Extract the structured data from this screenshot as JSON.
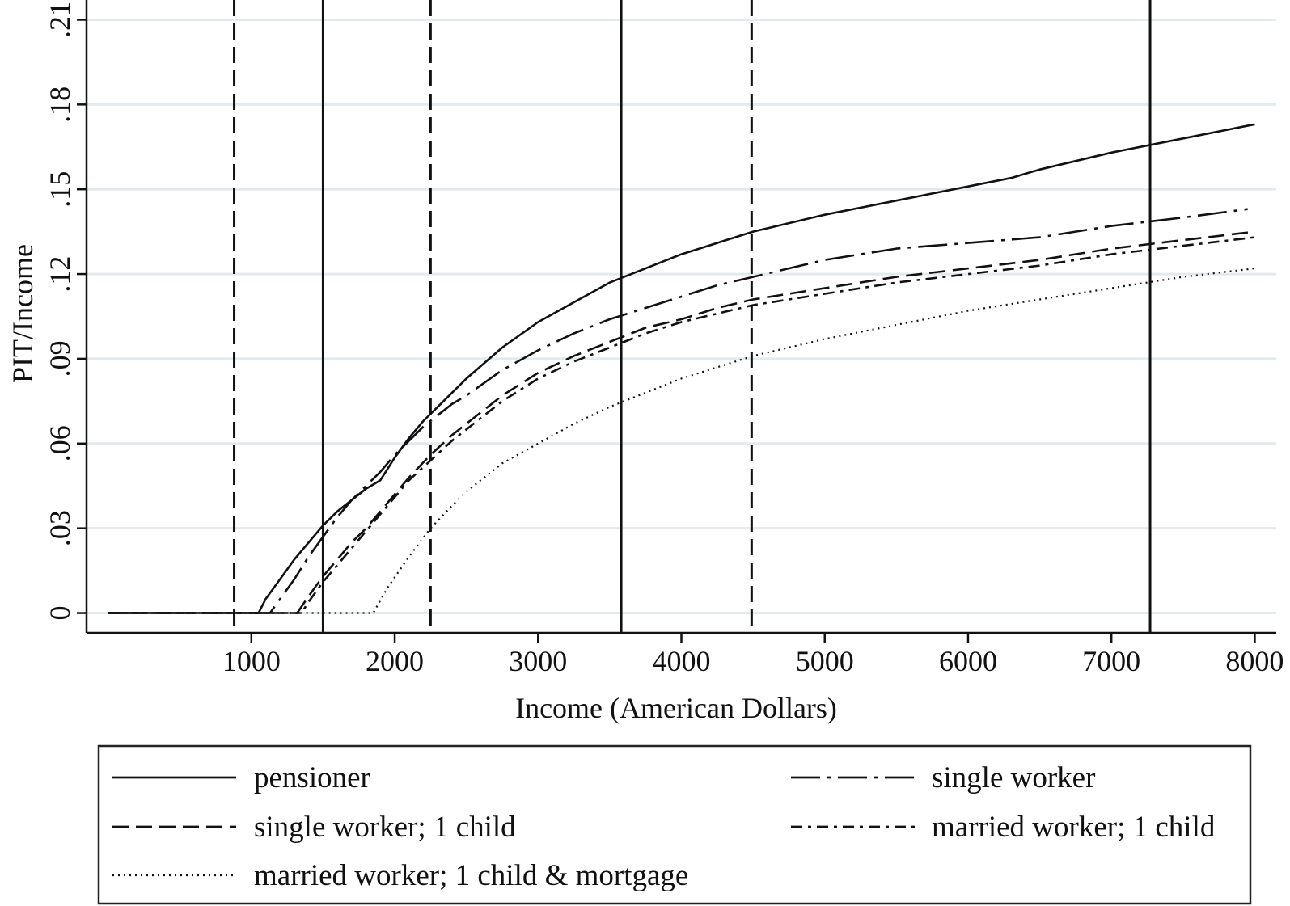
{
  "chart_data": {
    "type": "line",
    "xlabel": "Income (American Dollars)",
    "ylabel": "PIT/Income",
    "xlim": [
      -150,
      8150
    ],
    "ylim": [
      -0.007,
      0.217
    ],
    "xticks": [
      1000,
      2000,
      3000,
      4000,
      5000,
      6000,
      7000,
      8000
    ],
    "xtick_labels": [
      "1000",
      "2000",
      "3000",
      "4000",
      "5000",
      "6000",
      "7000",
      "8000"
    ],
    "yticks": [
      0,
      0.03,
      0.06,
      0.09,
      0.12,
      0.15,
      0.18,
      0.21
    ],
    "ytick_labels": [
      "0",
      ".03",
      ".06",
      ".09",
      ".12",
      ".15",
      ".18",
      ".21"
    ],
    "grid": true,
    "legend_position": "bottom",
    "series": [
      {
        "name": "pensioner",
        "style": "solid",
        "x": [
          0,
          1050,
          1100,
          1200,
          1300,
          1400,
          1500,
          1600,
          1700,
          1800,
          1900,
          2000,
          2100,
          2200,
          2300,
          2400,
          2500,
          2750,
          3000,
          3250,
          3500,
          3750,
          4000,
          4250,
          4500,
          5000,
          5500,
          6000,
          6300,
          6500,
          7000,
          7500,
          8000
        ],
        "y": [
          0,
          0,
          0.005,
          0.012,
          0.019,
          0.025,
          0.031,
          0.036,
          0.04,
          0.044,
          0.047,
          0.055,
          0.062,
          0.068,
          0.073,
          0.078,
          0.083,
          0.094,
          0.103,
          0.11,
          0.117,
          0.122,
          0.127,
          0.131,
          0.135,
          0.141,
          0.146,
          0.151,
          0.154,
          0.157,
          0.163,
          0.168,
          0.173
        ]
      },
      {
        "name": "single worker",
        "style": "longdash-dot",
        "x": [
          0,
          1130,
          1200,
          1300,
          1400,
          1500,
          1600,
          1700,
          1800,
          1900,
          2000,
          2100,
          2200,
          2300,
          2400,
          2500,
          2750,
          3000,
          3250,
          3500,
          3750,
          4000,
          4250,
          4500,
          5000,
          5500,
          6000,
          6500,
          7000,
          7500,
          7950
        ],
        "y": [
          0,
          0,
          0.005,
          0.012,
          0.02,
          0.027,
          0.034,
          0.04,
          0.045,
          0.05,
          0.056,
          0.061,
          0.066,
          0.07,
          0.074,
          0.077,
          0.086,
          0.093,
          0.099,
          0.104,
          0.108,
          0.112,
          0.116,
          0.119,
          0.125,
          0.129,
          0.131,
          0.133,
          0.137,
          0.14,
          0.143
        ]
      },
      {
        "name": "single worker; 1 child",
        "style": "dash",
        "x": [
          0,
          1320,
          1400,
          1500,
          1600,
          1700,
          1800,
          1900,
          2000,
          2100,
          2250,
          2400,
          2500,
          2750,
          3000,
          3250,
          3500,
          3750,
          4000,
          4250,
          4500,
          5000,
          5500,
          6000,
          6500,
          7000,
          7500,
          8000
        ],
        "y": [
          0,
          0,
          0.006,
          0.013,
          0.019,
          0.025,
          0.03,
          0.036,
          0.042,
          0.048,
          0.056,
          0.063,
          0.067,
          0.077,
          0.085,
          0.091,
          0.096,
          0.101,
          0.104,
          0.108,
          0.111,
          0.115,
          0.119,
          0.122,
          0.125,
          0.129,
          0.132,
          0.135
        ]
      },
      {
        "name": "married worker; 1 child",
        "style": "dash-dot",
        "x": [
          0,
          1350,
          1400,
          1500,
          1600,
          1700,
          1800,
          1900,
          2000,
          2100,
          2250,
          2400,
          2500,
          2750,
          3000,
          3250,
          3500,
          3750,
          4000,
          4250,
          4500,
          5000,
          5500,
          6000,
          6500,
          7000,
          7500,
          8000
        ],
        "y": [
          0,
          0,
          0.004,
          0.011,
          0.017,
          0.023,
          0.029,
          0.035,
          0.041,
          0.047,
          0.054,
          0.061,
          0.065,
          0.075,
          0.083,
          0.089,
          0.094,
          0.099,
          0.103,
          0.106,
          0.109,
          0.113,
          0.117,
          0.12,
          0.123,
          0.127,
          0.13,
          0.133
        ]
      },
      {
        "name": "married worker; 1 child & mortgage",
        "style": "dot",
        "x": [
          0,
          1850,
          1950,
          2100,
          2250,
          2400,
          2500,
          2750,
          3000,
          3250,
          3500,
          3750,
          4000,
          4250,
          4500,
          5000,
          5500,
          6000,
          6500,
          7000,
          7500,
          8000
        ],
        "y": [
          0,
          0,
          0.009,
          0.02,
          0.03,
          0.038,
          0.043,
          0.053,
          0.06,
          0.067,
          0.073,
          0.078,
          0.083,
          0.087,
          0.091,
          0.097,
          0.102,
          0.107,
          0.111,
          0.115,
          0.119,
          0.122
        ]
      }
    ],
    "vlines": [
      {
        "x": 880,
        "style": "dash"
      },
      {
        "x": 1500,
        "style": "solid"
      },
      {
        "x": 2250,
        "style": "dash"
      },
      {
        "x": 3580,
        "style": "solid"
      },
      {
        "x": 4490,
        "style": "dash"
      },
      {
        "x": 7270,
        "style": "solid"
      }
    ]
  }
}
